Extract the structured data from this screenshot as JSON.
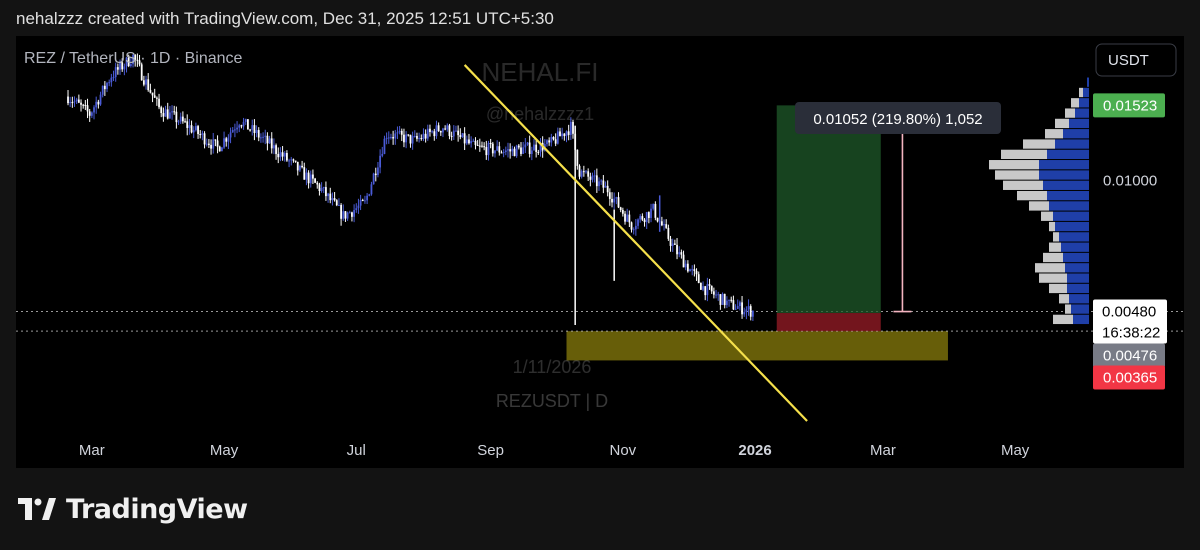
{
  "header": {
    "attribution": "nehalzzz created with TradingView.com, Dec 31, 2025 12:51 UTC+5:30"
  },
  "symbol_info": "REZ / TetherUS · 1D · Binance",
  "watermark": {
    "title": "NEHAL.FI",
    "handle": "@nehalzzzz1",
    "date_text": "1/11/2026",
    "ticker": "REZUSDT | D"
  },
  "currency_button": "USDT",
  "measure_label": "0.01052 (219.80%) 1,052",
  "price_labels": {
    "target": {
      "text": "0.01523",
      "color": "#4caf50"
    },
    "mid": {
      "text": "0.01000"
    },
    "current": {
      "text": "0.00480",
      "countdown": "16:38:22"
    },
    "entry": {
      "text": "0.00476",
      "color": "#787b86"
    },
    "stop": {
      "text": "0.00365",
      "color": "#f23645"
    }
  },
  "brand": {
    "name": "TradingView"
  },
  "colors": {
    "candle_up": "#4a5bd6",
    "candle_down": "#ffffff",
    "trendline": "#f5e04b",
    "profile_blue": "#1f3fa8",
    "profile_grey": "#c8c8c8"
  },
  "chart_data": {
    "type": "candlestick",
    "symbol": "REZ / TetherUS",
    "interval": "1D",
    "exchange": "Binance",
    "x_ticks": [
      "Mar",
      "May",
      "Jul",
      "Sep",
      "Nov",
      "2026",
      "Mar",
      "May"
    ],
    "y_ticks": [
      0.01
    ],
    "ylim": [
      0.0025,
      0.021
    ],
    "close_path": [
      [
        "2025-02-18",
        0.016
      ],
      [
        "2025-02-28",
        0.0145
      ],
      [
        "2025-03-10",
        0.018
      ],
      [
        "2025-03-20",
        0.02
      ],
      [
        "2025-04-01",
        0.015
      ],
      [
        "2025-04-15",
        0.0135
      ],
      [
        "2025-04-28",
        0.012
      ],
      [
        "2025-05-08",
        0.014
      ],
      [
        "2025-05-20",
        0.0125
      ],
      [
        "2025-06-01",
        0.011
      ],
      [
        "2025-06-15",
        0.0095
      ],
      [
        "2025-06-25",
        0.0082
      ],
      [
        "2025-07-05",
        0.0088
      ],
      [
        "2025-07-15",
        0.013
      ],
      [
        "2025-07-28",
        0.0125
      ],
      [
        "2025-08-10",
        0.0135
      ],
      [
        "2025-08-25",
        0.012
      ],
      [
        "2025-09-10",
        0.0118
      ],
      [
        "2025-09-28",
        0.0122
      ],
      [
        "2025-10-08",
        0.0135
      ],
      [
        "2025-10-12",
        0.0105
      ],
      [
        "2025-10-25",
        0.0095
      ],
      [
        "2025-11-05",
        0.0078
      ],
      [
        "2025-11-15",
        0.0085
      ],
      [
        "2025-11-25",
        0.0068
      ],
      [
        "2025-12-08",
        0.0055
      ],
      [
        "2025-12-20",
        0.005
      ],
      [
        "2025-12-31",
        0.0048
      ]
    ],
    "trendline": [
      [
        "2025-08-20",
        0.0191
      ],
      [
        "2026-01-25",
        0.0026
      ]
    ],
    "support_zone": [
      0.00365,
      0.0043
    ],
    "position": {
      "entry": 0.00476,
      "target": 0.01523,
      "stop": 0.00365
    },
    "measure": {
      "change": 0.01052,
      "percent": 219.8,
      "ticks": 1052
    },
    "current_price": 0.0048,
    "volume_profile_rows": 24
  }
}
